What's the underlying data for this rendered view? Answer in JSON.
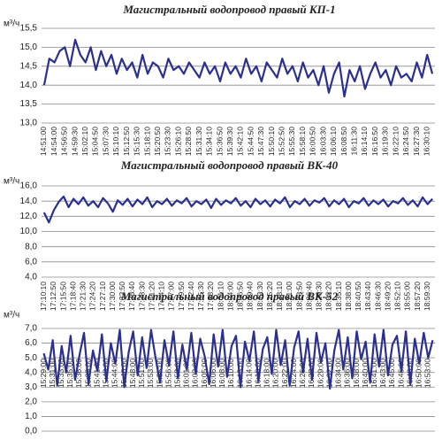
{
  "chart_data": [
    {
      "type": "line",
      "title": "Магистральный водопровод правый КП-1",
      "ylabel": "м³/ч",
      "color": "#2b2f8f",
      "grid": true,
      "categories": [
        "14:51:00",
        null,
        "14:54:00",
        null,
        "14:56:50",
        null,
        "14:59:30",
        null,
        "15:02:10",
        null,
        "15:04:50",
        null,
        "15:07:30",
        null,
        "15:10:10",
        null,
        "15:12:50",
        null,
        "15:15:30",
        null,
        "15:18:10",
        null,
        "15:20:50",
        null,
        "15:23:30",
        null,
        "15:26:10",
        null,
        "15:28:50",
        null,
        "15:31:30",
        null,
        "15:34:10",
        null,
        "15:36:50",
        null,
        "15:39:30",
        null,
        "15:42:10",
        null,
        "15:44:50",
        null,
        "15:47:30",
        null,
        "15:50:10",
        null,
        "15:52:50",
        null,
        "15:55:30",
        null,
        "15:58:10",
        null,
        "16:00:50",
        null,
        "16:03:30",
        null,
        "16:06:10",
        null,
        "16:08:50",
        null,
        "16:11:30",
        null,
        "16:14:10",
        null,
        "16:16:50",
        null,
        "16:19:30",
        null,
        "16:22:10",
        null,
        "16:24:50",
        null,
        "16:27:30",
        null,
        "16:30:10",
        null
      ],
      "values": [
        14.0,
        14.7,
        14.6,
        14.9,
        15.0,
        14.5,
        15.2,
        14.8,
        14.6,
        15.0,
        14.4,
        14.9,
        14.5,
        14.8,
        14.3,
        14.7,
        14.4,
        14.6,
        14.2,
        14.8,
        14.3,
        14.6,
        14.5,
        14.2,
        14.7,
        14.4,
        14.5,
        14.3,
        14.6,
        14.4,
        14.2,
        14.6,
        14.3,
        14.5,
        14.1,
        14.6,
        14.3,
        14.5,
        14.2,
        14.7,
        14.3,
        14.5,
        14.1,
        14.6,
        14.4,
        14.2,
        14.7,
        14.3,
        14.5,
        14.1,
        14.6,
        14.2,
        14.4,
        14.0,
        14.5,
        13.8,
        14.3,
        14.6,
        13.7,
        14.4,
        14.1,
        14.5,
        13.9,
        14.3,
        14.6,
        14.2,
        14.4,
        14.0,
        14.5,
        14.2,
        14.3,
        14.1,
        14.6,
        14.2,
        14.8,
        14.3
      ],
      "ylim": [
        13,
        15.5
      ],
      "yticks": [
        {
          "value": 13,
          "label": "13,0"
        },
        {
          "value": 13.5,
          "label": "13,5"
        },
        {
          "value": 14,
          "label": "14,0"
        },
        {
          "value": 14.5,
          "label": "14,5"
        },
        {
          "value": 15,
          "label": "15,0"
        },
        {
          "value": 15.5,
          "label": "15,5"
        }
      ]
    },
    {
      "type": "line",
      "title": "Магистральный водопровод правый ВК-40",
      "ylabel": "м³/ч",
      "color": "#2b2f8f",
      "grid": true,
      "categories": [
        "17:10:10",
        null,
        "17:12:50",
        null,
        "17:15:50",
        null,
        "17:18:40",
        null,
        "17:21:30",
        null,
        "17:24:20",
        null,
        "17:27:10",
        null,
        "17:30:00",
        null,
        "17:32:50",
        null,
        "17:35:40",
        null,
        "17:38:30",
        null,
        "17:41:20",
        null,
        "17:44:10",
        null,
        "17:47:00",
        null,
        "17:49:50",
        null,
        "17:52:40",
        null,
        "17:55:30",
        null,
        "17:58:20",
        null,
        "18:01:10",
        null,
        "18:04:00",
        null,
        "18:06:50",
        null,
        "18:09:40",
        null,
        "18:12:30",
        null,
        "18:15:20",
        null,
        "18:18:10",
        null,
        "18:21:00",
        null,
        "18:23:50",
        null,
        "18:26:40",
        null,
        "18:29:30",
        null,
        "18:32:20",
        null,
        "18:35:10",
        null,
        "18:38:00",
        null,
        "18:40:50",
        null,
        "18:43:40",
        null,
        "18:46:30",
        null,
        "18:49:20",
        null,
        "18:52:10",
        null,
        "18:55:00",
        null,
        "18:57:20",
        null,
        "18:59:30",
        null
      ],
      "values": [
        12.5,
        11.2,
        12.8,
        13.9,
        14.6,
        13.2,
        14.3,
        13.6,
        14.5,
        13.4,
        14.0,
        13.2,
        14.4,
        13.7,
        12.6,
        14.1,
        13.5,
        14.3,
        13.3,
        14.2,
        13.6,
        14.5,
        13.2,
        14.0,
        13.6,
        14.3,
        13.4,
        14.1,
        13.7,
        14.4,
        13.3,
        14.0,
        13.6,
        14.2,
        13.1,
        14.3,
        13.5,
        14.1,
        13.7,
        14.4,
        13.4,
        14.0,
        13.2,
        14.3,
        13.6,
        14.1,
        13.3,
        14.2,
        13.7,
        14.5,
        13.2,
        14.0,
        13.6,
        14.3,
        13.4,
        14.1,
        13.8,
        14.4,
        13.3,
        14.1,
        13.6,
        14.3,
        13.2,
        14.0,
        13.7,
        14.4,
        13.4,
        14.1,
        13.6,
        14.2,
        13.3,
        14.0,
        13.7,
        14.4,
        13.5,
        14.1,
        13.3,
        14.5,
        13.6,
        14.3
      ],
      "ylim": [
        4,
        16
      ],
      "yticks": [
        {
          "value": 4,
          "label": "4,0"
        },
        {
          "value": 6,
          "label": "6,0"
        },
        {
          "value": 8,
          "label": "8,0"
        },
        {
          "value": 10,
          "label": "10,0"
        },
        {
          "value": 12,
          "label": "12,0"
        },
        {
          "value": 14,
          "label": "14,0"
        },
        {
          "value": 16,
          "label": "16,0"
        }
      ]
    },
    {
      "type": "line",
      "title": "Магистральный водопровод правый ВК-52",
      "ylabel": "м³/ч",
      "color": "#2b2f8f",
      "grid": true,
      "categories": [
        "15:29:00",
        null,
        "15:31:00",
        null,
        "15:33:00",
        null,
        "15:35:00",
        null,
        "15:36:00",
        null,
        "15:39:00",
        null,
        "15:41:00",
        null,
        "15:43:00",
        null,
        "15:44:00",
        null,
        "15:46:00",
        null,
        "15:48:00",
        null,
        "15:51:00",
        null,
        "15:53:00",
        null,
        "15:55:00",
        null,
        "15:56:00",
        null,
        "15:58:00",
        null,
        "16:01:00",
        null,
        "16:03:00",
        null,
        "16:05:00",
        null,
        "16:06:00",
        null,
        "16:08:00",
        null,
        "16:10:00",
        null,
        "16:13:00",
        null,
        "16:14:00",
        null,
        "16:16:00",
        null,
        "16:18:00",
        null,
        "16:20:00",
        null,
        "16:22:00",
        null,
        "16:24:00",
        null,
        "16:26:00",
        null,
        "16:28:00",
        null,
        "16:29:00",
        null,
        "16:32:00",
        null,
        "16:34:00",
        null,
        "16:36:00",
        null,
        "16:38:00",
        null,
        "16:40:00",
        null,
        "16:41:00",
        null,
        "16:43:00",
        null,
        "16:45:00",
        null,
        "16:46:00",
        null,
        "16:48:00",
        null,
        "16:50:00",
        null,
        "16:53:00",
        null
      ],
      "values": [
        5.3,
        4.2,
        6.2,
        3.1,
        5.8,
        4.0,
        6.5,
        3.5,
        5.2,
        6.7,
        3.2,
        5.5,
        4.1,
        6.6,
        3.4,
        6.0,
        4.6,
        6.9,
        3.0,
        5.4,
        6.8,
        3.8,
        6.4,
        4.3,
        6.9,
        5.0,
        3.3,
        6.2,
        4.5,
        6.8,
        3.6,
        5.9,
        4.2,
        6.7,
        3.9,
        6.3,
        5.1,
        3.2,
        6.6,
        4.4,
        6.9,
        3.7,
        5.8,
        6.5,
        3.0,
        6.1,
        4.8,
        6.8,
        3.4,
        5.6,
        6.4,
        3.9,
        6.9,
        4.5,
        6.2,
        3.1,
        5.7,
        6.8,
        4.0,
        6.3,
        3.5,
        6.7,
        4.7,
        6.0,
        2.9,
        5.5,
        6.9,
        4.2,
        6.4,
        3.6,
        6.8,
        4.9,
        6.1,
        3.3,
        6.6,
        4.4,
        6.9,
        3.8,
        5.9,
        6.5,
        4.1,
        6.8,
        3.2,
        6.3,
        4.6,
        6.7,
        5.0,
        6.2
      ],
      "ylim": [
        0,
        7
      ],
      "yticks": [
        {
          "value": 0,
          "label": "0,0"
        },
        {
          "value": 1,
          "label": "1,0"
        },
        {
          "value": 2,
          "label": "2,0"
        },
        {
          "value": 3,
          "label": "3,0"
        },
        {
          "value": 4,
          "label": "4,0"
        },
        {
          "value": 5,
          "label": "5,0"
        },
        {
          "value": 6,
          "label": "6,0"
        },
        {
          "value": 7,
          "label": "7,0"
        }
      ]
    }
  ]
}
